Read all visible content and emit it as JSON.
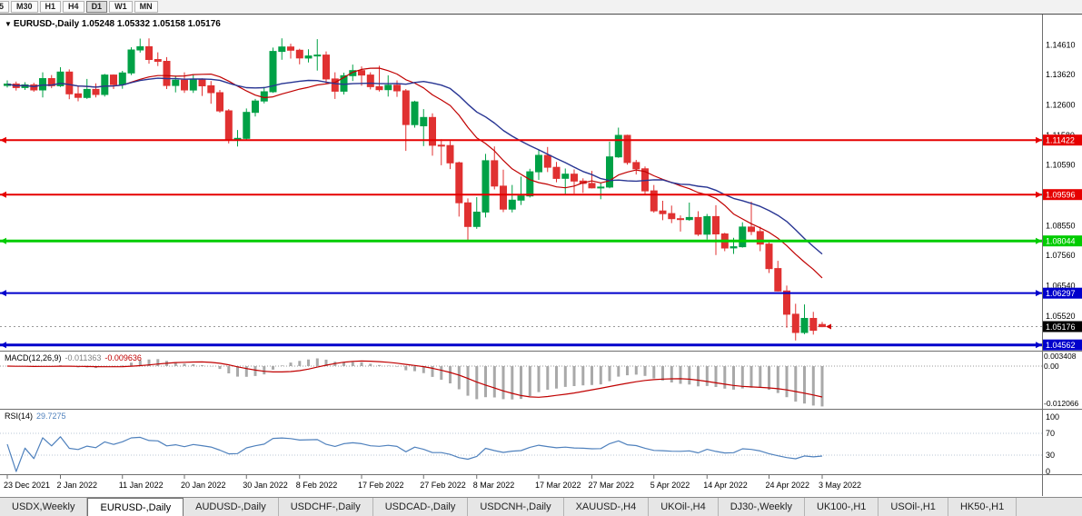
{
  "toolbar": {
    "timeframe_buttons": [
      {
        "label": "5",
        "active": false
      },
      {
        "label": "M30",
        "active": false
      },
      {
        "label": "H1",
        "active": false
      },
      {
        "label": "H4",
        "active": false
      },
      {
        "label": "D1",
        "active": true
      },
      {
        "label": "W1",
        "active": false
      },
      {
        "label": "MN",
        "active": false
      }
    ]
  },
  "chart_header": {
    "dropdown_icon": "▼",
    "title": "EURUSD-,Daily 1.05248 1.05332 1.05158 1.05176"
  },
  "chart_data": {
    "type": "candlestick",
    "symbol": "EURUSD-",
    "timeframe": "Daily",
    "ohlc": {
      "open": "1.05248",
      "high": "1.05332",
      "low": "1.05158",
      "close": "1.05176"
    },
    "bull_color": "#00A146",
    "bear_color": "#E03131",
    "price_axis_labels": [
      "1.14610",
      "1.13620",
      "1.12600",
      "1.11580",
      "1.10590",
      "1.09570",
      "1.08550",
      "1.07560",
      "1.06540",
      "1.05520",
      "1.04530"
    ],
    "x_axis": {
      "labels": [
        "23 Dec 2021",
        "2 Jan 2022",
        "11 Jan 2022",
        "20 Jan 2022",
        "30 Jan 2022",
        "8 Feb 2022",
        "17 Feb 2022",
        "27 Feb 2022",
        "8 Mar 2022",
        "17 Mar 2022",
        "27 Mar 2022",
        "5 Apr 2022",
        "14 Apr 2022",
        "24 Apr 2022",
        "3 May 2022"
      ],
      "indices": [
        0,
        6,
        13,
        20,
        27,
        33,
        40,
        47,
        53,
        60,
        66,
        73,
        79,
        86,
        92
      ]
    },
    "candles": [
      [
        1.1325,
        1.1342,
        1.1318,
        1.133
      ],
      [
        1.133,
        1.1338,
        1.1308,
        1.1318
      ],
      [
        1.1318,
        1.1336,
        1.131,
        1.1327
      ],
      [
        1.1327,
        1.1334,
        1.1304,
        1.131
      ],
      [
        1.131,
        1.1369,
        1.1285,
        1.1348
      ],
      [
        1.1348,
        1.136,
        1.1316,
        1.1324
      ],
      [
        1.1324,
        1.1386,
        1.132,
        1.137
      ],
      [
        1.137,
        1.1379,
        1.1279,
        1.1297
      ],
      [
        1.1297,
        1.1323,
        1.1272,
        1.1285
      ],
      [
        1.1285,
        1.1347,
        1.128,
        1.1312
      ],
      [
        1.1312,
        1.1332,
        1.1285,
        1.1295
      ],
      [
        1.1295,
        1.1364,
        1.1288,
        1.136
      ],
      [
        1.136,
        1.1362,
        1.1313,
        1.1328
      ],
      [
        1.1328,
        1.1374,
        1.1314,
        1.1367
      ],
      [
        1.1367,
        1.1453,
        1.136,
        1.1444
      ],
      [
        1.1444,
        1.1482,
        1.1435,
        1.1455
      ],
      [
        1.1455,
        1.1483,
        1.1398,
        1.1412
      ],
      [
        1.1412,
        1.1436,
        1.139,
        1.1406
      ],
      [
        1.1406,
        1.142,
        1.1313,
        1.1325
      ],
      [
        1.1325,
        1.1358,
        1.1302,
        1.1343
      ],
      [
        1.1343,
        1.1369,
        1.13,
        1.131
      ],
      [
        1.131,
        1.136,
        1.13,
        1.1344
      ],
      [
        1.1344,
        1.1349,
        1.129,
        1.1324
      ],
      [
        1.1324,
        1.134,
        1.1264,
        1.1301
      ],
      [
        1.1301,
        1.131,
        1.1234,
        1.124
      ],
      [
        1.124,
        1.1246,
        1.1131,
        1.1144
      ],
      [
        1.1144,
        1.1176,
        1.1121,
        1.1148
      ],
      [
        1.1148,
        1.1248,
        1.114,
        1.1235
      ],
      [
        1.1235,
        1.128,
        1.1221,
        1.1273
      ],
      [
        1.1273,
        1.132,
        1.1265,
        1.1304
      ],
      [
        1.1304,
        1.1452,
        1.13,
        1.1439
      ],
      [
        1.1439,
        1.1483,
        1.1411,
        1.1454
      ],
      [
        1.1454,
        1.1465,
        1.1415,
        1.1443
      ],
      [
        1.1443,
        1.1448,
        1.1396,
        1.1417
      ],
      [
        1.1417,
        1.1446,
        1.1402,
        1.1424
      ],
      [
        1.1424,
        1.148,
        1.1375,
        1.1427
      ],
      [
        1.1427,
        1.1439,
        1.133,
        1.1347
      ],
      [
        1.1347,
        1.1369,
        1.128,
        1.1306
      ],
      [
        1.1306,
        1.1368,
        1.1295,
        1.1358
      ],
      [
        1.1358,
        1.1395,
        1.134,
        1.1375
      ],
      [
        1.1375,
        1.1389,
        1.1324,
        1.136
      ],
      [
        1.136,
        1.1369,
        1.1312,
        1.1321
      ],
      [
        1.1321,
        1.1391,
        1.1305,
        1.1311
      ],
      [
        1.1311,
        1.1359,
        1.1288,
        1.1326
      ],
      [
        1.1326,
        1.1342,
        1.1287,
        1.1307
      ],
      [
        1.1307,
        1.1313,
        1.1106,
        1.1194
      ],
      [
        1.1194,
        1.1274,
        1.1184,
        1.127
      ],
      [
        1.119,
        1.1246,
        1.1122,
        1.1218
      ],
      [
        1.1218,
        1.1232,
        1.109,
        1.1125
      ],
      [
        1.1125,
        1.1145,
        1.1058,
        1.1124
      ],
      [
        1.1124,
        1.1139,
        1.1045,
        1.1066
      ],
      [
        1.1066,
        1.107,
        1.0886,
        1.0932
      ],
      [
        1.0932,
        1.0947,
        1.0806,
        1.0853
      ],
      [
        1.0853,
        1.0951,
        1.0845,
        1.0901
      ],
      [
        1.0901,
        1.1096,
        1.0883,
        1.1073
      ],
      [
        1.1073,
        1.1121,
        1.0977,
        1.0988
      ],
      [
        1.0988,
        1.1043,
        1.0901,
        1.0911
      ],
      [
        1.0911,
        1.0992,
        1.09,
        1.0941
      ],
      [
        1.0941,
        1.102,
        1.0925,
        1.0955
      ],
      [
        1.0955,
        1.1046,
        1.095,
        1.1036
      ],
      [
        1.1036,
        1.1109,
        1.1009,
        1.1091
      ],
      [
        1.1091,
        1.1119,
        1.1035,
        1.1051
      ],
      [
        1.1051,
        1.1069,
        1.1001,
        1.1014
      ],
      [
        1.1014,
        1.1047,
        1.0962,
        1.1028
      ],
      [
        1.1028,
        1.1044,
        1.0963,
        1.1005
      ],
      [
        1.1005,
        1.1014,
        1.0965,
        1.0997
      ],
      [
        1.0997,
        1.1039,
        1.098,
        1.0982
      ],
      [
        1.0982,
        1.1,
        1.0944,
        1.0985
      ],
      [
        1.0985,
        1.1137,
        1.0981,
        1.1086
      ],
      [
        1.1086,
        1.1184,
        1.1083,
        1.1158
      ],
      [
        1.1158,
        1.116,
        1.106,
        1.1067
      ],
      [
        1.1067,
        1.1076,
        1.1027,
        1.1046
      ],
      [
        1.1046,
        1.1054,
        1.096,
        1.0972
      ],
      [
        1.0972,
        1.0992,
        1.0899,
        1.0905
      ],
      [
        1.0905,
        1.0939,
        1.0874,
        1.0896
      ],
      [
        1.0896,
        1.0923,
        1.0864,
        1.0879
      ],
      [
        1.0879,
        1.089,
        1.0836,
        1.0876
      ],
      [
        1.0876,
        1.0933,
        1.0872,
        1.0883
      ],
      [
        1.0883,
        1.0904,
        1.0821,
        1.0827
      ],
      [
        1.0827,
        1.0895,
        1.0809,
        1.0886
      ],
      [
        1.0886,
        1.0924,
        1.0757,
        1.0828
      ],
      [
        1.0828,
        1.0832,
        1.077,
        1.0781
      ],
      [
        1.0781,
        1.0815,
        1.0761,
        1.0785
      ],
      [
        1.0785,
        1.0867,
        1.0782,
        1.0851
      ],
      [
        1.0851,
        1.0936,
        1.0824,
        1.0836
      ],
      [
        1.0836,
        1.0852,
        1.077,
        1.0794
      ],
      [
        1.0794,
        1.08,
        1.0697,
        1.0712
      ],
      [
        1.0712,
        1.0738,
        1.0635,
        1.0637
      ],
      [
        1.0637,
        1.0655,
        1.0514,
        1.0559
      ],
      [
        1.0559,
        1.0594,
        1.0471,
        1.0498
      ],
      [
        1.0498,
        1.0592,
        1.0492,
        1.0545
      ],
      [
        1.0545,
        1.0567,
        1.0491,
        1.0505
      ],
      [
        1.05248,
        1.05332,
        1.05158,
        1.05176
      ]
    ],
    "moving_averages": {
      "fast": {
        "period": 13,
        "color": "#C00000"
      },
      "slow": {
        "period": 21,
        "color": "#283593"
      }
    },
    "horizontal_lines": [
      {
        "value": 1.11422,
        "label": "1.11422",
        "color": "#E60000",
        "width": 2
      },
      {
        "value": 1.09596,
        "label": "1.09596",
        "color": "#E60000",
        "width": 2
      },
      {
        "value": 1.08044,
        "label": "1.08044",
        "color": "#00CC00",
        "width": 3
      },
      {
        "value": 1.06297,
        "label": "1.06297",
        "color": "#0000CC",
        "width": 2
      },
      {
        "value": 1.04562,
        "label": "1.04562",
        "color": "#0000CC",
        "width": 3
      }
    ],
    "current_price": {
      "value": 1.05176,
      "label": "1.05176",
      "color": "#000000"
    },
    "macd": {
      "label": "MACD(12,26,9)",
      "fast": 12,
      "slow": 26,
      "signal": 9,
      "values_text": [
        "-0.011363",
        "-0.009636"
      ],
      "axis_labels": [
        "0.003408",
        "0.00",
        "-0.012066"
      ],
      "axis_values": [
        0.003408,
        0,
        -0.012066
      ],
      "histogram_color": "#A9A9A9",
      "signal_color": "#C00000"
    },
    "rsi": {
      "label": "RSI(14)",
      "period": 14,
      "value_text": "29.7275",
      "axis_labels": [
        100,
        70,
        30,
        0
      ],
      "levels": [
        70,
        30
      ],
      "line_color": "#4F81BD"
    }
  },
  "tabs": {
    "items": [
      {
        "label": "USDX,Weekly",
        "active": false
      },
      {
        "label": "EURUSD-,Daily",
        "active": true
      },
      {
        "label": "AUDUSD-,Daily",
        "active": false
      },
      {
        "label": "USDCHF-,Daily",
        "active": false
      },
      {
        "label": "USDCAD-,Daily",
        "active": false
      },
      {
        "label": "USDCNH-,Daily",
        "active": false
      },
      {
        "label": "XAUUSD-,H4",
        "active": false
      },
      {
        "label": "UKOil-,H4",
        "active": false
      },
      {
        "label": "DJ30-,Weekly",
        "active": false
      },
      {
        "label": "UK100-,H1",
        "active": false
      },
      {
        "label": "USOil-,H1",
        "active": false
      },
      {
        "label": "HK50-,H1",
        "active": false
      }
    ]
  }
}
